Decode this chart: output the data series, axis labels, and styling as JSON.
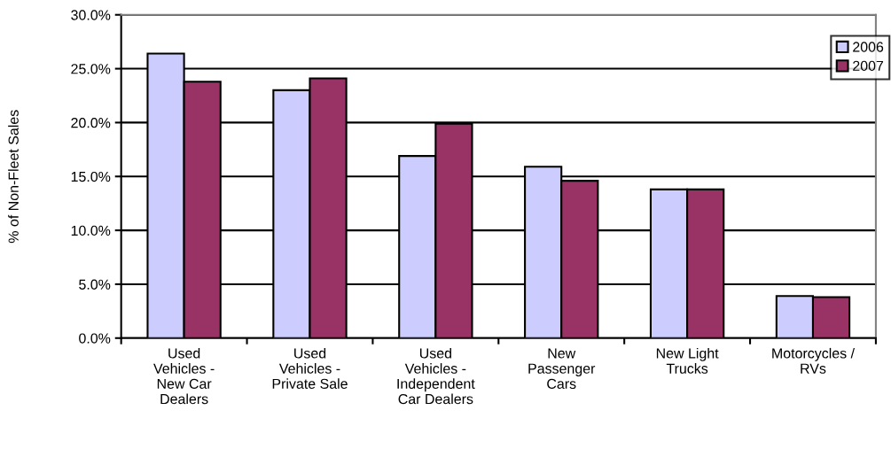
{
  "chart_data": {
    "type": "bar",
    "ylabel": "% of Non-Fleet Sales",
    "categories": [
      "Used\nVehicles -\nNew Car\nDealers",
      "Used\nVehicles -\nPrivate Sale",
      "Used\nVehicles -\nIndependent\nCar Dealers",
      "New\nPassenger\nCars",
      "New Light\nTrucks",
      "Motorcycles /\nRVs"
    ],
    "series": [
      {
        "name": "2006",
        "color": "#ccccff",
        "values": [
          26.4,
          23.0,
          16.9,
          15.9,
          13.8,
          3.9
        ]
      },
      {
        "name": "2007",
        "color": "#993366",
        "values": [
          23.8,
          24.1,
          19.9,
          14.6,
          13.8,
          3.8
        ]
      }
    ],
    "ylim": [
      0,
      30
    ],
    "yticks": [
      {
        "value": 0,
        "label": "0.0%"
      },
      {
        "value": 5,
        "label": "5.0%"
      },
      {
        "value": 10,
        "label": "10.0%"
      },
      {
        "value": 15,
        "label": "15.0%"
      },
      {
        "value": 20,
        "label": "20.0%"
      },
      {
        "value": 25,
        "label": "25.0%"
      },
      {
        "value": 30,
        "label": "30.0%"
      }
    ],
    "grid": "y",
    "legend": "top right"
  }
}
